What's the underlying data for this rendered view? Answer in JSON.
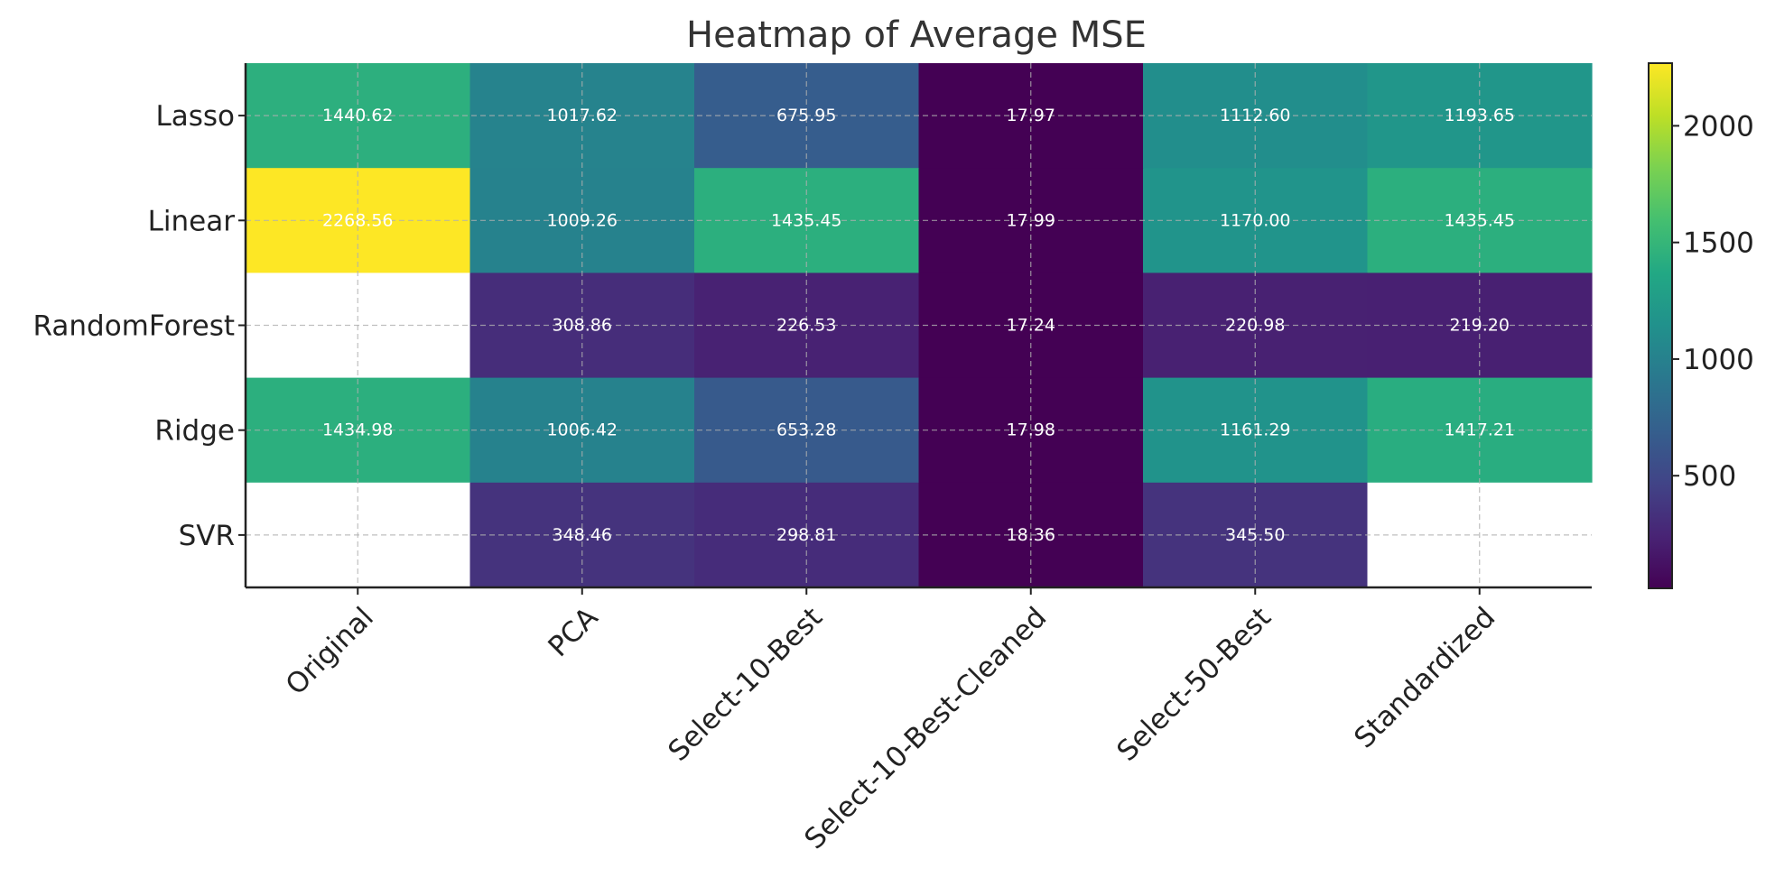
{
  "chart_data": {
    "type": "heatmap",
    "title": "Heatmap of Average MSE",
    "xlabel": "",
    "ylabel": "",
    "rows": [
      "Lasso",
      "Linear",
      "RandomForest",
      "Ridge",
      "SVR"
    ],
    "columns": [
      "Original",
      "PCA",
      "Select-10-Best",
      "Select-10-Best-Cleaned",
      "Select-50-Best",
      "Standardized"
    ],
    "values": [
      [
        1440.62,
        1017.62,
        675.95,
        17.97,
        1112.6,
        1193.65
      ],
      [
        2268.56,
        1009.26,
        1435.45,
        17.99,
        1170.0,
        1435.45
      ],
      [
        null,
        308.86,
        226.53,
        17.24,
        220.98,
        219.2
      ],
      [
        1434.98,
        1006.42,
        653.28,
        17.98,
        1161.29,
        1417.21
      ],
      [
        null,
        348.46,
        298.81,
        18.36,
        345.5,
        null
      ]
    ],
    "cell_labels": [
      [
        "1440.62",
        "1017.62",
        "675.95",
        "17.97",
        "1112.60",
        "1193.65"
      ],
      [
        "2268.56",
        "1009.26",
        "1435.45",
        "17.99",
        "1170.00",
        "1435.45"
      ],
      [
        "",
        "308.86",
        "226.53",
        "17.24",
        "220.98",
        "219.20"
      ],
      [
        "1434.98",
        "1006.42",
        "653.28",
        "17.98",
        "1161.29",
        "1417.21"
      ],
      [
        "",
        "348.46",
        "298.81",
        "18.36",
        "345.50",
        ""
      ]
    ],
    "colormap": "viridis",
    "vmin": 17.24,
    "vmax": 2268.56,
    "colorbar_ticks": [
      500,
      1000,
      1500,
      2000
    ],
    "colorbar_tick_labels": [
      "500",
      "1000",
      "1500",
      "2000"
    ],
    "grid": true,
    "missing_color": "#ffffff",
    "cell_text_color": "#ffffff"
  }
}
